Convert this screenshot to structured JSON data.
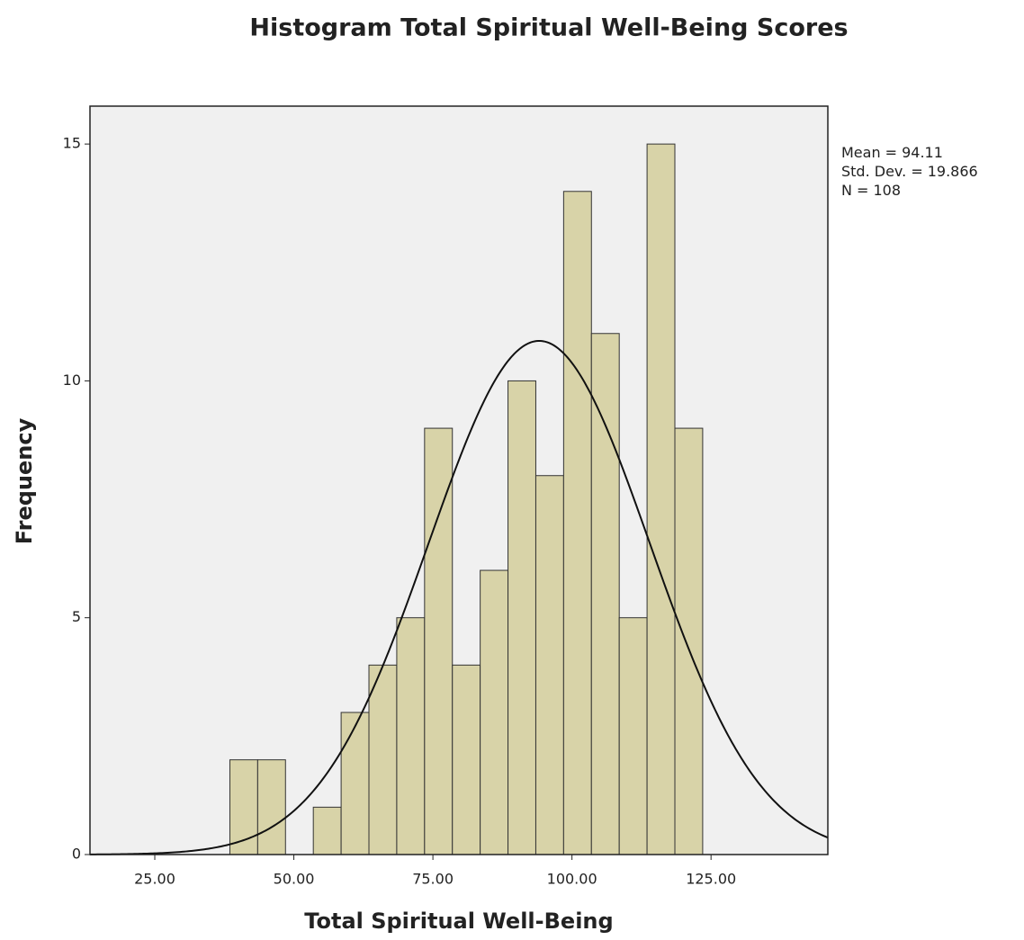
{
  "chart_data": {
    "type": "histogram",
    "title": "Histogram Total Spiritual Well-Being Scores",
    "x_label": "Total Spiritual Well-Being",
    "y_label": "Frequency",
    "bins": [
      38.5,
      43.5,
      48.5,
      53.5,
      58.5,
      63.5,
      68.5,
      73.5,
      78.5,
      83.5,
      88.5,
      93.5,
      98.5,
      103.5,
      108.5,
      113.5,
      118.5,
      123.5
    ],
    "counts": [
      2,
      2,
      0,
      1,
      3,
      4,
      5,
      9,
      4,
      6,
      10,
      8,
      14,
      11,
      5,
      15,
      9
    ],
    "color": "#d8d3a8",
    "xlim": [
      13.35,
      146
    ],
    "ylim": [
      0,
      15.8
    ],
    "xticks": [
      {
        "value": 25,
        "label": "25.00"
      },
      {
        "value": 50,
        "label": "50.00"
      },
      {
        "value": 75,
        "label": "75.00"
      },
      {
        "value": 100,
        "label": "100.00"
      },
      {
        "value": 125,
        "label": "125.00"
      }
    ],
    "yticks": [
      0,
      5,
      10,
      15
    ],
    "stats": [
      {
        "label": "Mean =",
        "value": 94.11
      },
      {
        "label": "Std. Dev. =",
        "value": 19.866
      },
      {
        "label": "N =",
        "value": 108
      }
    ]
  }
}
